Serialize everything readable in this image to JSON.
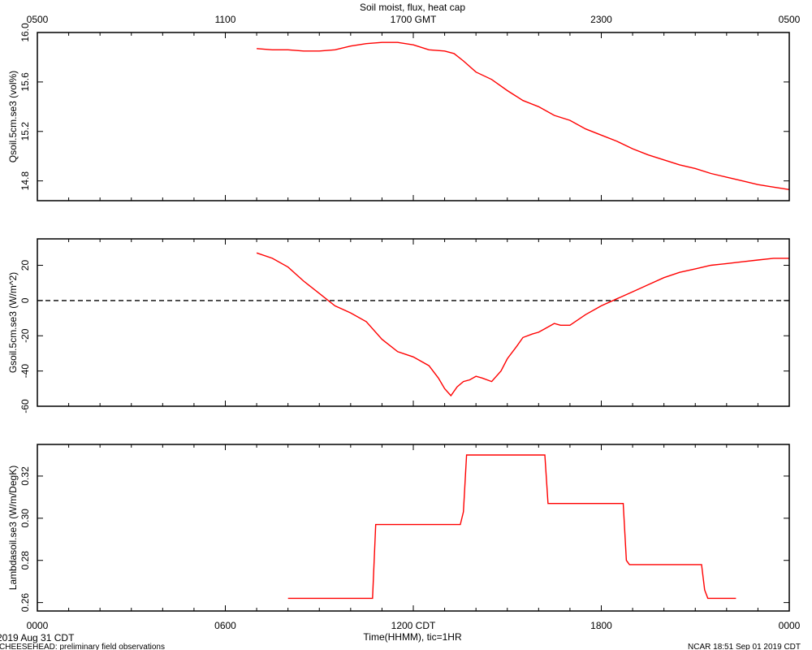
{
  "title": "Soil moist, flux, heat cap",
  "top_axis": {
    "ticks": [
      "0500",
      "1100",
      "1700 GMT",
      "2300",
      "0500"
    ]
  },
  "bottom_axis": {
    "ticks": [
      "0000",
      "0600",
      "1200 CDT",
      "1800",
      "0000"
    ],
    "label": "Time(HHMM), tic=1HR"
  },
  "date_label": "2019 Aug 31 CDT",
  "footer_left": "CHEESEHEAD: preliminary field observations",
  "footer_right": "NCAR 18:51 Sep 01 2019 CDT",
  "colors": {
    "series": "#ff0000",
    "zero_line": "#000000"
  },
  "chart_data": [
    {
      "type": "line",
      "ylabel": "Qsoil.5cm.se3 (vol%)",
      "ylim": [
        14.64,
        16.0
      ],
      "yticks": [
        "14.8",
        "15.2",
        "15.6",
        "16.0"
      ],
      "x_hours": [
        7.0,
        7.5,
        8.0,
        8.5,
        9.0,
        9.5,
        10.0,
        10.5,
        11.0,
        11.5,
        12.0,
        12.5,
        13.0,
        13.3,
        13.6,
        14.0,
        14.5,
        15.0,
        15.5,
        16.0,
        16.5,
        17.0,
        17.5,
        18.0,
        18.5,
        19.0,
        19.5,
        20.0,
        20.5,
        21.0,
        21.5,
        22.0,
        22.5,
        23.0,
        23.5,
        24.0
      ],
      "values": [
        15.87,
        15.86,
        15.86,
        15.85,
        15.85,
        15.86,
        15.89,
        15.91,
        15.92,
        15.92,
        15.9,
        15.86,
        15.85,
        15.83,
        15.77,
        15.68,
        15.62,
        15.53,
        15.45,
        15.4,
        15.33,
        15.29,
        15.22,
        15.17,
        15.12,
        15.06,
        15.01,
        14.97,
        14.93,
        14.9,
        14.86,
        14.83,
        14.8,
        14.77,
        14.75,
        14.73
      ]
    },
    {
      "type": "line",
      "ylabel": "Gsoil.5cm.se3 (W/m^2)",
      "ylim": [
        -60,
        35
      ],
      "yticks": [
        "-60",
        "-40",
        "-20",
        "0",
        "20"
      ],
      "zero_line": true,
      "x_hours": [
        7.0,
        7.5,
        8.0,
        8.5,
        9.0,
        9.5,
        10.0,
        10.5,
        11.0,
        11.5,
        12.0,
        12.5,
        12.8,
        13.0,
        13.2,
        13.4,
        13.6,
        13.8,
        14.0,
        14.2,
        14.5,
        14.8,
        15.0,
        15.3,
        15.5,
        15.8,
        16.0,
        16.2,
        16.5,
        16.7,
        17.0,
        17.5,
        18.0,
        18.5,
        19.0,
        19.5,
        20.0,
        20.5,
        21.0,
        21.5,
        22.0,
        22.5,
        23.0,
        23.5,
        24.0
      ],
      "values": [
        27,
        24,
        19,
        11,
        4,
        -3,
        -7,
        -12,
        -22,
        -29,
        -32,
        -37,
        -44,
        -50,
        -54,
        -49,
        -46,
        -45,
        -43,
        -44,
        -46,
        -40,
        -33,
        -26,
        -21,
        -19,
        -18,
        -16,
        -13,
        -14,
        -14,
        -8,
        -3,
        1,
        5,
        9,
        13,
        16,
        18,
        20,
        21,
        22,
        23,
        24,
        24
      ]
    },
    {
      "type": "line",
      "ylabel": "Lambdasoil.se3 (W/m/DegK)",
      "ylim": [
        0.256,
        0.335
      ],
      "yticks": [
        "0.26",
        "0.28",
        "0.30",
        "0.32"
      ],
      "x_hours": [
        8.0,
        10.7,
        10.8,
        13.5,
        13.6,
        13.7,
        16.2,
        16.3,
        18.7,
        18.8,
        18.9,
        21.2,
        21.3,
        21.4,
        22.3
      ],
      "values": [
        0.262,
        0.262,
        0.297,
        0.297,
        0.303,
        0.33,
        0.33,
        0.307,
        0.307,
        0.28,
        0.278,
        0.278,
        0.266,
        0.262,
        0.262
      ]
    }
  ]
}
